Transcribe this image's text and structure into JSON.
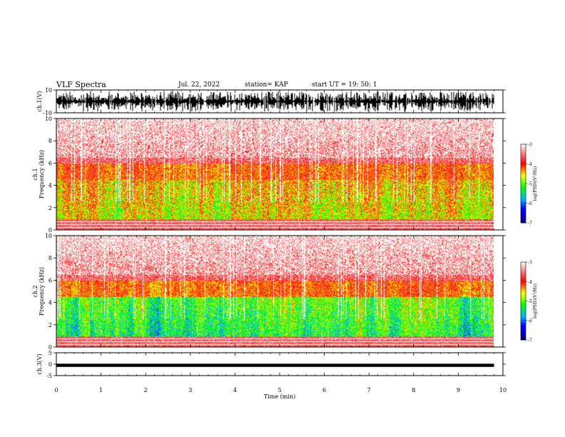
{
  "header": {
    "title": "VLF Spectra",
    "date": "Jul. 22, 2022",
    "station": "station= KAP",
    "start": "start  UT =   19: 50: 1"
  },
  "chart_data": [
    {
      "type": "line",
      "name": "ch1-waveform",
      "ylabel": "ch.1(V)",
      "ylim": [
        -10,
        10
      ],
      "yticks": [
        "10",
        "-10"
      ],
      "xlim": [
        0,
        10
      ],
      "data_extent_min": [
        0,
        9.8
      ],
      "description_values": {
        "min": -10,
        "max": 10
      }
    },
    {
      "type": "heatmap",
      "name": "ch1-spectrogram",
      "ylabel": "ch.1\nFrequency (kHz)",
      "ylim": [
        0,
        10
      ],
      "yticks": [
        "0",
        "2",
        "4",
        "6",
        "8",
        "10"
      ],
      "xlim": [
        0,
        10
      ],
      "data_extent_min": [
        0,
        9.8
      ],
      "colorbar": {
        "label": "log(PSD)(V²/Hz)",
        "ticks": [
          "-3",
          "-4",
          "-5",
          "-6",
          "-7"
        ],
        "range": [
          -7,
          -3
        ]
      }
    },
    {
      "type": "heatmap",
      "name": "ch2-spectrogram",
      "ylabel": "ch.2\nFrequency (kHz)",
      "ylim": [
        0,
        10
      ],
      "yticks": [
        "0",
        "2",
        "4",
        "6",
        "8",
        "10"
      ],
      "xlim": [
        0,
        10
      ],
      "data_extent_min": [
        0,
        9.8
      ],
      "colorbar": {
        "label": "log(PSD)(V²/Hz)",
        "ticks": [
          "-3",
          "-4",
          "-5",
          "-6",
          "-7"
        ],
        "range": [
          -7,
          -3
        ]
      }
    },
    {
      "type": "line",
      "name": "ch3-waveform",
      "ylabel": "ch.3(V)",
      "ylim": [
        -5,
        5
      ],
      "yticks": [
        "5",
        "0",
        "-5"
      ],
      "xlim": [
        0,
        10
      ],
      "xlabel": "Time (min)",
      "xticks": [
        "0",
        "1",
        "2",
        "3",
        "4",
        "5",
        "6",
        "7",
        "8",
        "9",
        "10"
      ],
      "data_extent_min": [
        0,
        9.8
      ],
      "band": [
        -1.2,
        0.2
      ]
    }
  ],
  "colors": {
    "scale": [
      "#000080",
      "#0000ff",
      "#00a0ff",
      "#00ff00",
      "#ffff00",
      "#ff0000",
      "#ffffff"
    ],
    "line": "#000000"
  }
}
